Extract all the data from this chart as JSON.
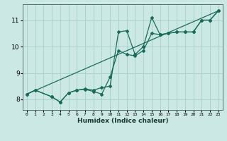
{
  "xlabel": "Humidex (Indice chaleur)",
  "bg_color": "#cce8e4",
  "grid_color": "#a8d4ce",
  "line_color": "#1a6b5a",
  "xlim": [
    -0.5,
    23.5
  ],
  "ylim": [
    7.6,
    11.6
  ],
  "xticks": [
    0,
    1,
    2,
    3,
    4,
    5,
    6,
    7,
    8,
    9,
    10,
    11,
    12,
    13,
    14,
    15,
    16,
    17,
    18,
    19,
    20,
    21,
    22,
    23
  ],
  "yticks": [
    8,
    9,
    10,
    11
  ],
  "series1_x": [
    0,
    1,
    3,
    4,
    5,
    6,
    7,
    8,
    9,
    10,
    11,
    12,
    13,
    14,
    15,
    16,
    17,
    18,
    19,
    20,
    21,
    22,
    23
  ],
  "series1_y": [
    8.2,
    8.35,
    8.1,
    7.9,
    8.25,
    8.35,
    8.4,
    8.35,
    8.45,
    8.5,
    10.55,
    10.6,
    9.7,
    10.0,
    11.1,
    10.45,
    10.5,
    10.55,
    10.55,
    10.55,
    11.0,
    11.0,
    11.35
  ],
  "series2_x": [
    0,
    1,
    3,
    4,
    5,
    6,
    7,
    8,
    9,
    10,
    11,
    12,
    13,
    14,
    15,
    16,
    17,
    18,
    19,
    20,
    21,
    22,
    23
  ],
  "series2_y": [
    8.2,
    8.35,
    8.1,
    7.9,
    8.25,
    8.35,
    8.38,
    8.3,
    8.2,
    8.85,
    9.85,
    9.7,
    9.65,
    9.85,
    10.5,
    10.45,
    10.5,
    10.55,
    10.55,
    10.55,
    11.0,
    11.0,
    11.35
  ],
  "line1_x": [
    0,
    23
  ],
  "line1_y": [
    8.2,
    11.35
  ]
}
